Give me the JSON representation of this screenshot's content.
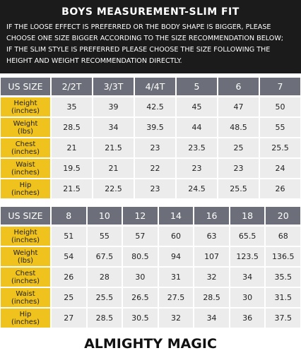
{
  "header": {
    "title": "BOYS  MEASUREMENT-SLIM FIT",
    "lines": [
      "IF THE LOOSE EFFECT IS PREFERRED OR THE BODY SHAPE IS BIGGER, PLEASE",
      "CHOOSE ONE SIZE BIGGER ACCORDING TO THE SIZE RECOMMENDATION BELOW;",
      "IF THE SLIM STYLE IS PREFERRED PLEASE CHOOSE THE SIZE FOLLOWING THE",
      "HEIGHT AND WEIGHT RECOMMENDATION DIRECTLY."
    ]
  },
  "tables": [
    {
      "corner": "US SIZE",
      "sizes": [
        "2/2T",
        "3/3T",
        "4/4T",
        "5",
        "6",
        "7"
      ],
      "rows": [
        {
          "name": "Height",
          "unit": "(inches)",
          "values": [
            35,
            39,
            42.5,
            45,
            47,
            50
          ]
        },
        {
          "name": "Weight",
          "unit": "(lbs)",
          "values": [
            28.5,
            34,
            39.5,
            44,
            48.5,
            55
          ]
        },
        {
          "name": "Chest",
          "unit": "(inches)",
          "values": [
            21,
            21.5,
            23,
            23.5,
            25,
            25.5
          ]
        },
        {
          "name": "Waist",
          "unit": "(inches)",
          "values": [
            19.5,
            21,
            22,
            23,
            23,
            24
          ]
        },
        {
          "name": "Hip",
          "unit": "(inches)",
          "values": [
            21.5,
            22.5,
            23,
            24.5,
            25.5,
            26
          ]
        }
      ]
    },
    {
      "corner": "US SIZE",
      "sizes": [
        "8",
        "10",
        "12",
        "14",
        "16",
        "18",
        "20"
      ],
      "rows": [
        {
          "name": "Height",
          "unit": "(inches)",
          "values": [
            51,
            55,
            57,
            60,
            63,
            65.5,
            68
          ]
        },
        {
          "name": "Weight",
          "unit": "(lbs)",
          "values": [
            54,
            67.5,
            80.5,
            94,
            107,
            123.5,
            136.5
          ]
        },
        {
          "name": "Chest",
          "unit": "(inches)",
          "values": [
            26,
            28,
            30,
            31,
            32,
            34,
            35.5
          ]
        },
        {
          "name": "Waist",
          "unit": "(inches)",
          "values": [
            25,
            25.5,
            26.5,
            27.5,
            28.5,
            30,
            31.5
          ]
        },
        {
          "name": "Hip",
          "unit": "(inches)",
          "values": [
            27,
            28.5,
            30.5,
            32,
            34,
            36,
            37.5
          ]
        }
      ]
    }
  ],
  "footer": {
    "brand": "ALMIGHTY MAGIC"
  }
}
